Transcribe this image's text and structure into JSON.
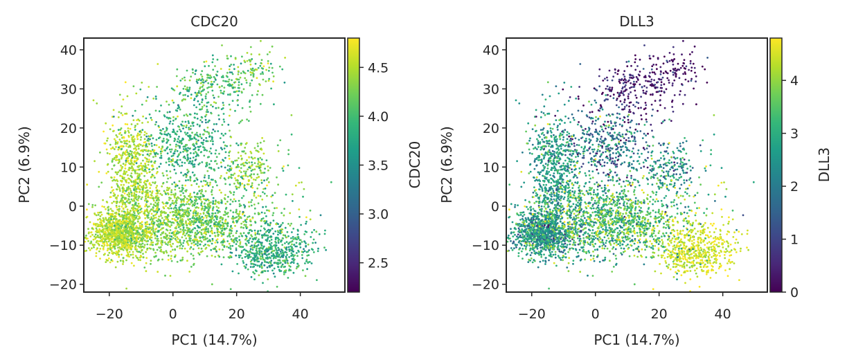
{
  "colormap": {
    "name": "viridis",
    "stops": [
      "#440154",
      "#482878",
      "#3e4989",
      "#31688e",
      "#26828e",
      "#1f9e89",
      "#35b779",
      "#6ece58",
      "#b5de2b",
      "#fde725"
    ]
  },
  "chart_data": [
    {
      "type": "scatter",
      "title": "CDC20",
      "xlabel": "PC1 (14.7%)",
      "ylabel": "PC2 (6.9%)",
      "xlim": [
        -28,
        54
      ],
      "ylim": [
        -22,
        43
      ],
      "xticks": [
        -20,
        0,
        20,
        40
      ],
      "xtick_labels": [
        "−20",
        "0",
        "20",
        "40"
      ],
      "yticks": [
        -20,
        -10,
        0,
        10,
        20,
        30,
        40
      ],
      "ytick_labels": [
        "−20",
        "−10",
        "0",
        "10",
        "20",
        "30",
        "40"
      ],
      "grid": false,
      "colorbar": {
        "label": "CDC20",
        "range": [
          2.2,
          4.8
        ],
        "ticks": [
          2.5,
          3.0,
          3.5,
          4.0,
          4.5
        ],
        "tick_labels": [
          "2.5",
          "3.0",
          "3.5",
          "4.0",
          "4.5"
        ]
      },
      "clusters": [
        {
          "cx": -17,
          "cy": -7,
          "sx": 4.5,
          "sy": 3,
          "n": 900,
          "value": 4.55,
          "vsd": 0.18
        },
        {
          "cx": -13,
          "cy": 10,
          "sx": 4,
          "sy": 7,
          "n": 600,
          "value": 4.5,
          "vsd": 0.2
        },
        {
          "cx": -5,
          "cy": -4,
          "sx": 9,
          "sy": 5,
          "n": 900,
          "value": 4.35,
          "vsd": 0.22
        },
        {
          "cx": 10,
          "cy": -4,
          "sx": 8,
          "sy": 4,
          "n": 500,
          "value": 4.2,
          "vsd": 0.25
        },
        {
          "cx": 5,
          "cy": 16,
          "sx": 7,
          "sy": 5,
          "n": 450,
          "value": 3.85,
          "vsd": 0.25
        },
        {
          "cx": 14,
          "cy": 30,
          "sx": 8,
          "sy": 4,
          "n": 280,
          "value": 4.05,
          "vsd": 0.3
        },
        {
          "cx": 25,
          "cy": 35,
          "sx": 4,
          "sy": 2.5,
          "n": 60,
          "value": 4.3,
          "vsd": 0.25
        },
        {
          "cx": 24,
          "cy": 10,
          "sx": 3.5,
          "sy": 3,
          "n": 150,
          "value": 4.4,
          "vsd": 0.2
        },
        {
          "cx": 32,
          "cy": -11,
          "sx": 6,
          "sy": 3.5,
          "n": 550,
          "value": 3.85,
          "vsd": 0.25
        },
        {
          "cx": 20,
          "cy": 0,
          "sx": 10,
          "sy": 8,
          "n": 300,
          "value": 4.1,
          "vsd": 0.3
        }
      ]
    },
    {
      "type": "scatter",
      "title": "DLL3",
      "xlabel": "PC1 (14.7%)",
      "ylabel": "PC2 (6.9%)",
      "xlim": [
        -28,
        54
      ],
      "ylim": [
        -22,
        43
      ],
      "xticks": [
        -20,
        0,
        20,
        40
      ],
      "xtick_labels": [
        "−20",
        "0",
        "20",
        "40"
      ],
      "yticks": [
        -20,
        -10,
        0,
        10,
        20,
        30,
        40
      ],
      "ytick_labels": [
        "−20",
        "−10",
        "0",
        "10",
        "20",
        "30",
        "40"
      ],
      "grid": false,
      "colorbar": {
        "label": "DLL3",
        "range": [
          0,
          4.8
        ],
        "ticks": [
          0,
          1,
          2,
          3,
          4
        ],
        "tick_labels": [
          "0",
          "1",
          "2",
          "3",
          "4"
        ]
      },
      "clusters": [
        {
          "cx": -17,
          "cy": -7,
          "sx": 4.5,
          "sy": 3,
          "n": 900,
          "value": 2.6,
          "vsd": 0.8
        },
        {
          "cx": -13,
          "cy": 10,
          "sx": 4,
          "sy": 7,
          "n": 600,
          "value": 2.7,
          "vsd": 0.6
        },
        {
          "cx": -5,
          "cy": -4,
          "sx": 9,
          "sy": 5,
          "n": 900,
          "value": 3.0,
          "vsd": 0.9
        },
        {
          "cx": 10,
          "cy": -4,
          "sx": 8,
          "sy": 4,
          "n": 500,
          "value": 3.6,
          "vsd": 0.6
        },
        {
          "cx": 5,
          "cy": 16,
          "sx": 7,
          "sy": 5,
          "n": 450,
          "value": 1.8,
          "vsd": 1.0
        },
        {
          "cx": 14,
          "cy": 30,
          "sx": 8,
          "sy": 4,
          "n": 280,
          "value": 0.4,
          "vsd": 0.6
        },
        {
          "cx": 25,
          "cy": 35,
          "sx": 4,
          "sy": 2.5,
          "n": 60,
          "value": 0.2,
          "vsd": 0.3
        },
        {
          "cx": 24,
          "cy": 10,
          "sx": 3.5,
          "sy": 3,
          "n": 150,
          "value": 2.5,
          "vsd": 0.8
        },
        {
          "cx": 32,
          "cy": -11,
          "sx": 6,
          "sy": 3.5,
          "n": 550,
          "value": 4.5,
          "vsd": 0.3
        },
        {
          "cx": 20,
          "cy": 0,
          "sx": 10,
          "sy": 8,
          "n": 300,
          "value": 3.2,
          "vsd": 0.9
        }
      ]
    }
  ]
}
